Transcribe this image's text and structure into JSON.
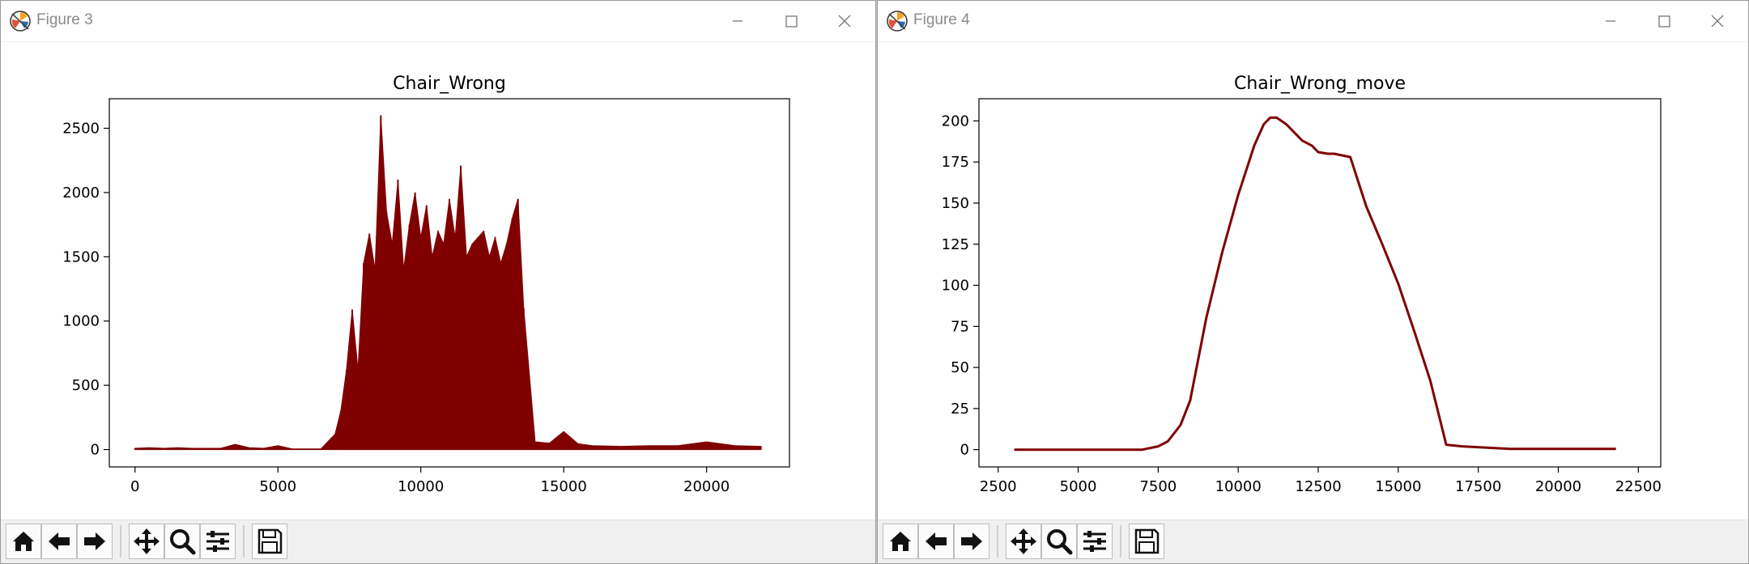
{
  "windows": [
    {
      "title": "Figure 3",
      "chart_data": {
        "type": "bar",
        "title": "Chair_Wrong",
        "xlabel": "",
        "ylabel": "",
        "xlim": [
          -900,
          22900
        ],
        "ylim": [
          -135,
          2730
        ],
        "x_ticks": [
          0,
          5000,
          10000,
          15000,
          20000
        ],
        "y_ticks": [
          0,
          500,
          1000,
          1500,
          2000,
          2500
        ],
        "grid": false,
        "color": "#800000",
        "x": [
          0,
          500,
          1000,
          1500,
          2000,
          2500,
          3000,
          3500,
          4000,
          4500,
          5000,
          5500,
          6000,
          6500,
          7000,
          7200,
          7400,
          7600,
          7800,
          8000,
          8200,
          8400,
          8600,
          8800,
          9000,
          9200,
          9400,
          9600,
          9800,
          10000,
          10200,
          10400,
          10600,
          10800,
          11000,
          11200,
          11400,
          11600,
          11800,
          12000,
          12200,
          12400,
          12600,
          12800,
          13000,
          13200,
          13400,
          13600,
          14000,
          14500,
          15000,
          15500,
          16000,
          17000,
          18000,
          19000,
          20000,
          21000,
          21900
        ],
        "values": [
          10,
          15,
          10,
          15,
          10,
          10,
          10,
          40,
          15,
          10,
          30,
          5,
          5,
          5,
          120,
          300,
          620,
          1090,
          620,
          1450,
          1680,
          1400,
          2600,
          1850,
          1600,
          2100,
          1400,
          1750,
          2000,
          1650,
          1900,
          1500,
          1700,
          1600,
          1950,
          1650,
          2210,
          1500,
          1600,
          1650,
          1700,
          1500,
          1650,
          1450,
          1600,
          1800,
          1950,
          1100,
          60,
          50,
          140,
          45,
          30,
          25,
          30,
          30,
          60,
          30,
          25
        ]
      }
    },
    {
      "title": "Figure 4",
      "chart_data": {
        "type": "line",
        "title": "Chair_Wrong_move",
        "xlabel": "",
        "ylabel": "",
        "xlim": [
          1900,
          23200
        ],
        "ylim": [
          -10.5,
          213.5
        ],
        "x_ticks": [
          2500,
          5000,
          7500,
          10000,
          12500,
          15000,
          17500,
          20000,
          22500
        ],
        "y_ticks": [
          0,
          25,
          50,
          75,
          100,
          125,
          150,
          175,
          200
        ],
        "grid": false,
        "color": "#800000",
        "x": [
          3000,
          5000,
          7000,
          7500,
          7800,
          8200,
          8500,
          9000,
          9500,
          10000,
          10500,
          10800,
          11000,
          11200,
          11500,
          11800,
          12000,
          12300,
          12500,
          12800,
          13000,
          13500,
          14000,
          14500,
          15000,
          15500,
          16000,
          16500,
          17000,
          18500,
          20000,
          21800
        ],
        "values": [
          0,
          0,
          0,
          2,
          5,
          15,
          30,
          80,
          120,
          155,
          185,
          198,
          202,
          202,
          198,
          192,
          188,
          185,
          181,
          180,
          180,
          178,
          148,
          125,
          101,
          72,
          42,
          3,
          2,
          0.5,
          0.5,
          0.5
        ]
      }
    }
  ],
  "toolbar": {
    "buttons": [
      "home-icon",
      "back-arrow-icon",
      "forward-arrow-icon",
      "pan-icon",
      "zoom-icon",
      "configure-subplots-icon",
      "save-icon"
    ]
  },
  "colors": {
    "series": "#800000",
    "toolbar_bg": "#f0f0f0",
    "title_text": "#8a8a8a"
  }
}
